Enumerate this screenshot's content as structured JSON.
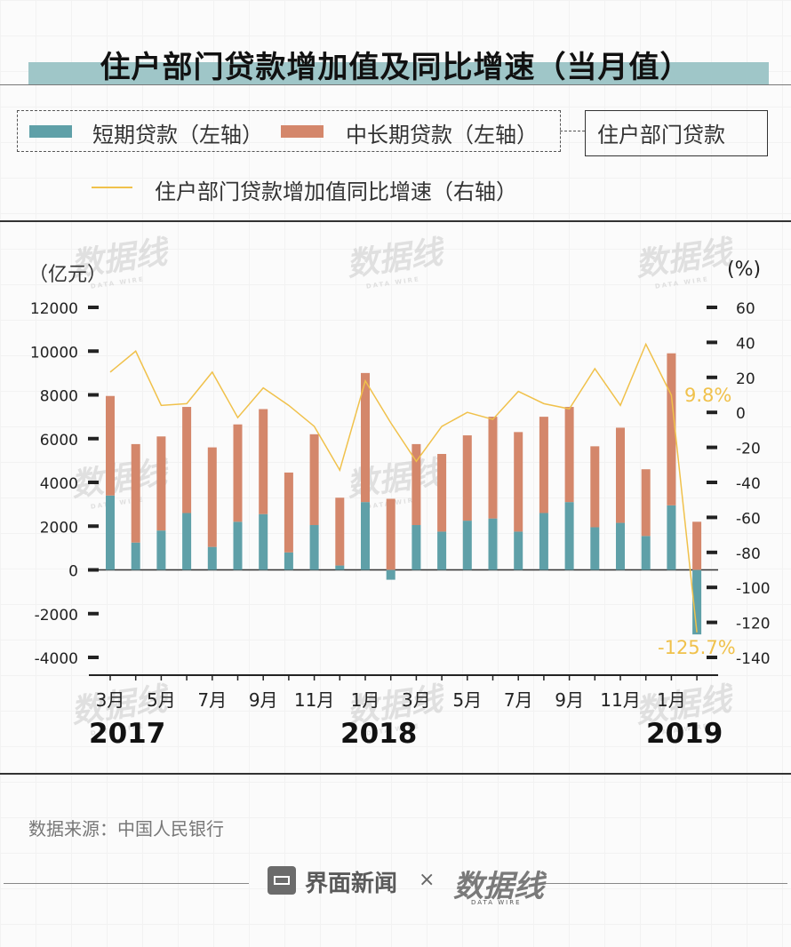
{
  "title": "住户部门贷款增加值及同比增速（当月值）",
  "legend": {
    "short_term": "短期贷款（左轴）",
    "long_term": "中长期贷款（左轴）",
    "group": "住户部门贷款",
    "growth": "住户部门贷款增加值同比增速（右轴）"
  },
  "colors": {
    "short_term": "#5fa0a8",
    "long_term": "#d4876b",
    "growth": "#f0c14b",
    "title_band": "#9fc6c8"
  },
  "axis": {
    "left_unit": "（亿元）",
    "right_unit": "(%)"
  },
  "watermark": "数据线",
  "watermark_sub": "DATA WIRE",
  "source": "数据来源：中国人民银行",
  "footer": {
    "brand": "界面新闻",
    "times": "×",
    "partner": "数据线",
    "partner_sub": "DATA WIRE"
  },
  "chart_data": {
    "type": "bar",
    "stacked": true,
    "categories": [
      "2017-03",
      "2017-04",
      "2017-05",
      "2017-06",
      "2017-07",
      "2017-08",
      "2017-09",
      "2017-10",
      "2017-11",
      "2017-12",
      "2018-01",
      "2018-02",
      "2018-03",
      "2018-04",
      "2018-05",
      "2018-06",
      "2018-07",
      "2018-08",
      "2018-09",
      "2018-10",
      "2018-11",
      "2018-12",
      "2019-01",
      "2019-02"
    ],
    "x_tick_labels": [
      "3月",
      "",
      "5月",
      "",
      "7月",
      "",
      "9月",
      "",
      "11月",
      "",
      "1月",
      "",
      "3月",
      "",
      "5月",
      "",
      "7月",
      "",
      "9月",
      "",
      "11月",
      "",
      "1月",
      ""
    ],
    "year_labels": [
      {
        "label": "2017",
        "at": 0
      },
      {
        "label": "2018",
        "at": 10
      },
      {
        "label": "2019",
        "at": 22
      }
    ],
    "series": [
      {
        "name": "短期贷款（左轴）",
        "axis": "left",
        "values": [
          3400,
          1250,
          1800,
          2600,
          1050,
          2200,
          2550,
          800,
          2050,
          200,
          3100,
          -450,
          2050,
          1750,
          2250,
          2350,
          1750,
          2600,
          3100,
          1950,
          2150,
          1550,
          2950,
          -2950
        ]
      },
      {
        "name": "中长期贷款（左轴）",
        "axis": "left",
        "values": [
          4550,
          4500,
          4300,
          4850,
          4550,
          4450,
          4800,
          3650,
          4150,
          3100,
          5900,
          3250,
          3700,
          3550,
          3900,
          4650,
          4550,
          4400,
          4350,
          3700,
          4350,
          3050,
          6950,
          2200
        ]
      },
      {
        "name": "住户部门贷款增加值同比增速（右轴）",
        "axis": "right",
        "type": "line",
        "values": [
          23,
          35,
          4,
          5,
          23,
          -3,
          14,
          4,
          -8,
          -33,
          18,
          -6,
          -28,
          -8,
          0,
          -4,
          12,
          5,
          2,
          25,
          4,
          39,
          9.8,
          -125.7
        ]
      }
    ],
    "data_labels": [
      {
        "index": 22,
        "text": "9.8%"
      },
      {
        "index": 23,
        "text": "-125.7%"
      }
    ],
    "ylim_left": [
      -4000,
      12000
    ],
    "yticks_left": [
      12000,
      10000,
      8000,
      6000,
      4000,
      2000,
      0,
      -2000,
      -4000
    ],
    "ylim_right": [
      -140,
      60
    ],
    "yticks_right": [
      60,
      40,
      20,
      0,
      -20,
      -40,
      -60,
      -80,
      -100,
      -120,
      -140
    ]
  }
}
